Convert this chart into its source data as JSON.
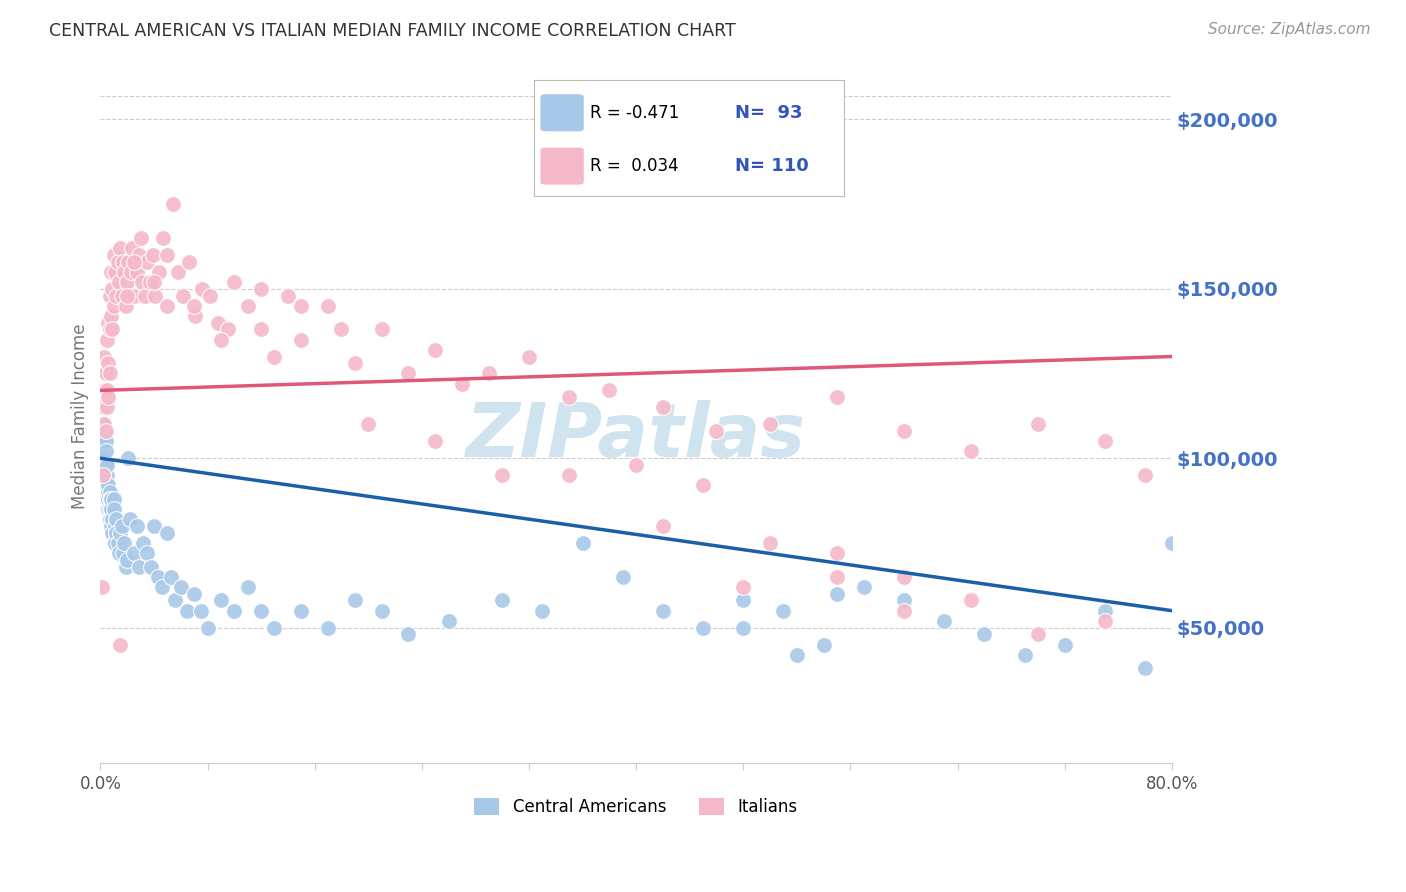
{
  "title": "CENTRAL AMERICAN VS ITALIAN MEDIAN FAMILY INCOME CORRELATION CHART",
  "source": "Source: ZipAtlas.com",
  "ylabel": "Median Family Income",
  "ytick_labels": [
    "$50,000",
    "$100,000",
    "$150,000",
    "$200,000"
  ],
  "ytick_values": [
    50000,
    100000,
    150000,
    200000
  ],
  "ymin": 10000,
  "ymax": 215000,
  "xmin": 0.0,
  "xmax": 0.8,
  "blue_color": "#A8C8E8",
  "pink_color": "#F5B8C8",
  "blue_line_color": "#1A5FA8",
  "pink_line_color": "#E05878",
  "watermark": "ZIPatlas",
  "watermark_color": "#D0E4F0",
  "background_color": "#FFFFFF",
  "blue_scatter_x": [
    0.001,
    0.002,
    0.002,
    0.003,
    0.003,
    0.003,
    0.004,
    0.004,
    0.004,
    0.004,
    0.005,
    0.005,
    0.005,
    0.005,
    0.006,
    0.006,
    0.006,
    0.006,
    0.007,
    0.007,
    0.007,
    0.007,
    0.008,
    0.008,
    0.008,
    0.009,
    0.009,
    0.01,
    0.01,
    0.01,
    0.011,
    0.011,
    0.012,
    0.012,
    0.013,
    0.014,
    0.015,
    0.016,
    0.017,
    0.018,
    0.019,
    0.02,
    0.021,
    0.022,
    0.025,
    0.027,
    0.029,
    0.032,
    0.035,
    0.038,
    0.04,
    0.043,
    0.046,
    0.05,
    0.053,
    0.056,
    0.06,
    0.065,
    0.07,
    0.075,
    0.08,
    0.09,
    0.1,
    0.11,
    0.12,
    0.13,
    0.15,
    0.17,
    0.19,
    0.21,
    0.23,
    0.26,
    0.3,
    0.33,
    0.36,
    0.39,
    0.42,
    0.45,
    0.48,
    0.51,
    0.54,
    0.57,
    0.6,
    0.63,
    0.66,
    0.69,
    0.72,
    0.75,
    0.78,
    0.8,
    0.55,
    0.48,
    0.52
  ],
  "blue_scatter_y": [
    115000,
    110000,
    105000,
    108000,
    100000,
    95000,
    105000,
    98000,
    92000,
    102000,
    95000,
    88000,
    92000,
    98000,
    90000,
    85000,
    92000,
    88000,
    90000,
    82000,
    88000,
    85000,
    85000,
    80000,
    88000,
    82000,
    78000,
    88000,
    75000,
    85000,
    80000,
    75000,
    82000,
    78000,
    75000,
    72000,
    78000,
    80000,
    72000,
    75000,
    68000,
    70000,
    100000,
    82000,
    72000,
    80000,
    68000,
    75000,
    72000,
    68000,
    80000,
    65000,
    62000,
    78000,
    65000,
    58000,
    62000,
    55000,
    60000,
    55000,
    50000,
    58000,
    55000,
    62000,
    55000,
    50000,
    55000,
    50000,
    58000,
    55000,
    48000,
    52000,
    58000,
    55000,
    75000,
    65000,
    55000,
    50000,
    58000,
    55000,
    45000,
    62000,
    58000,
    52000,
    48000,
    42000,
    45000,
    55000,
    38000,
    75000,
    60000,
    50000,
    42000
  ],
  "pink_scatter_x": [
    0.001,
    0.002,
    0.002,
    0.003,
    0.003,
    0.003,
    0.004,
    0.004,
    0.005,
    0.005,
    0.005,
    0.006,
    0.006,
    0.006,
    0.007,
    0.007,
    0.007,
    0.008,
    0.008,
    0.009,
    0.009,
    0.01,
    0.01,
    0.011,
    0.012,
    0.013,
    0.014,
    0.015,
    0.016,
    0.017,
    0.018,
    0.019,
    0.02,
    0.021,
    0.022,
    0.023,
    0.024,
    0.025,
    0.027,
    0.029,
    0.031,
    0.033,
    0.035,
    0.037,
    0.039,
    0.041,
    0.044,
    0.047,
    0.05,
    0.054,
    0.058,
    0.062,
    0.066,
    0.071,
    0.076,
    0.082,
    0.088,
    0.095,
    0.1,
    0.11,
    0.12,
    0.13,
    0.14,
    0.15,
    0.17,
    0.19,
    0.21,
    0.23,
    0.25,
    0.27,
    0.29,
    0.32,
    0.35,
    0.38,
    0.42,
    0.46,
    0.5,
    0.55,
    0.6,
    0.65,
    0.7,
    0.75,
    0.78,
    0.5,
    0.55,
    0.6,
    0.35,
    0.4,
    0.45,
    0.2,
    0.25,
    0.3,
    0.15,
    0.18,
    0.12,
    0.09,
    0.07,
    0.05,
    0.04,
    0.03,
    0.025,
    0.02,
    0.015,
    0.55,
    0.6,
    0.65,
    0.7,
    0.75,
    0.48,
    0.42
  ],
  "pink_scatter_y": [
    62000,
    115000,
    95000,
    130000,
    110000,
    120000,
    125000,
    108000,
    135000,
    120000,
    115000,
    140000,
    128000,
    118000,
    148000,
    138000,
    125000,
    155000,
    142000,
    150000,
    138000,
    160000,
    145000,
    155000,
    148000,
    158000,
    152000,
    162000,
    148000,
    158000,
    155000,
    145000,
    152000,
    158000,
    148000,
    155000,
    162000,
    148000,
    155000,
    160000,
    152000,
    148000,
    158000,
    152000,
    160000,
    148000,
    155000,
    165000,
    145000,
    175000,
    155000,
    148000,
    158000,
    142000,
    150000,
    148000,
    140000,
    138000,
    152000,
    145000,
    138000,
    130000,
    148000,
    135000,
    145000,
    128000,
    138000,
    125000,
    132000,
    122000,
    125000,
    130000,
    118000,
    120000,
    115000,
    108000,
    110000,
    118000,
    108000,
    102000,
    110000,
    105000,
    95000,
    75000,
    65000,
    55000,
    95000,
    98000,
    92000,
    110000,
    105000,
    95000,
    145000,
    138000,
    150000,
    135000,
    145000,
    160000,
    152000,
    165000,
    158000,
    148000,
    45000,
    72000,
    65000,
    58000,
    48000,
    52000,
    62000,
    80000
  ]
}
